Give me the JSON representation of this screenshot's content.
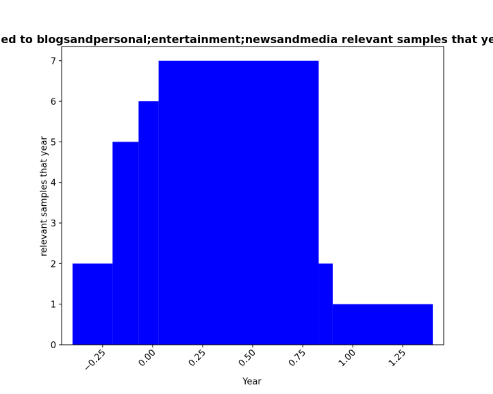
{
  "chart_data": {
    "type": "bar",
    "title": "ed to blogsandpersonal;entertainment;newsandmedia relevant samples that yea",
    "xlabel": "Year",
    "ylabel": "relevant samples that year",
    "color": "#0000ff",
    "xlim": [
      -0.4545,
      1.4545
    ],
    "ylim": [
      0,
      7.35
    ],
    "xticks": [
      {
        "value": -0.25,
        "label": "−0.25"
      },
      {
        "value": 0.0,
        "label": "0.00"
      },
      {
        "value": 0.25,
        "label": "0.25"
      },
      {
        "value": 0.5,
        "label": "0.50"
      },
      {
        "value": 0.75,
        "label": "0.75"
      },
      {
        "value": 1.0,
        "label": "1.00"
      },
      {
        "value": 1.25,
        "label": "1.25"
      }
    ],
    "yticks": [
      {
        "value": 0,
        "label": "0"
      },
      {
        "value": 1,
        "label": "1"
      },
      {
        "value": 2,
        "label": "2"
      },
      {
        "value": 3,
        "label": "3"
      },
      {
        "value": 4,
        "label": "4"
      },
      {
        "value": 5,
        "label": "5"
      },
      {
        "value": 6,
        "label": "6"
      },
      {
        "value": 7,
        "label": "7"
      }
    ],
    "bars": [
      {
        "x0": -0.4,
        "x1": -0.2,
        "value": 2
      },
      {
        "x0": -0.2,
        "x1": -0.07,
        "value": 5
      },
      {
        "x0": -0.07,
        "x1": 0.03,
        "value": 6
      },
      {
        "x0": 0.03,
        "x1": 0.83,
        "value": 7
      },
      {
        "x0": 0.83,
        "x1": 0.9,
        "value": 2
      },
      {
        "x0": 0.9,
        "x1": 1.4,
        "value": 1
      }
    ]
  }
}
